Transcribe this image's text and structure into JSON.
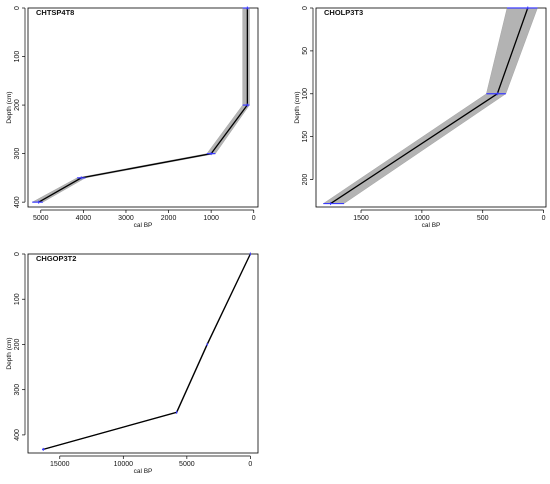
{
  "chart_data": [
    {
      "type": "line",
      "title": "CHTSP4T8",
      "xlabel": "cal BP",
      "ylabel": "Depth (cm)",
      "xlim": [
        5300,
        -100
      ],
      "ylim": [
        0,
        410
      ],
      "x_reversed": true,
      "y_reversed": true,
      "x_ticks": [
        5000,
        4000,
        3000,
        2000,
        1000,
        0
      ],
      "y_ticks": [
        0,
        100,
        200,
        300,
        400
      ],
      "colors": {
        "envelope": "#b3b3b3",
        "median": "#000000",
        "date_marker": "#3b3bff"
      },
      "series": [
        {
          "age": [
            150,
            150,
            1000,
            4050,
            5050
          ],
          "depth": [
            0,
            200,
            300,
            350,
            400
          ],
          "age_min": [
            100,
            100,
            900,
            3950,
            4950
          ],
          "age_max": [
            260,
            260,
            1100,
            4150,
            5200
          ]
        }
      ],
      "dated_depths": [
        0,
        200,
        300,
        350,
        400
      ]
    },
    {
      "type": "line",
      "title": "CHOLP3T3",
      "xlabel": "cal BP",
      "ylabel": "Depth (cm)",
      "xlim": [
        1870,
        -20
      ],
      "ylim": [
        0,
        232
      ],
      "x_reversed": true,
      "y_reversed": true,
      "x_ticks": [
        1500,
        1000,
        500,
        0
      ],
      "y_ticks": [
        0,
        50,
        100,
        150,
        200
      ],
      "colors": {
        "envelope": "#b3b3b3",
        "median": "#000000",
        "date_marker": "#3b3bff"
      },
      "series": [
        {
          "age": [
            130,
            380,
            1750
          ],
          "depth": [
            0,
            100,
            228
          ],
          "age_min": [
            50,
            310,
            1640
          ],
          "age_max": [
            300,
            470,
            1810
          ]
        }
      ],
      "dated_depths": [
        0,
        100,
        228
      ]
    },
    {
      "type": "line",
      "title": "CHGOP3T2",
      "xlabel": "cal BP",
      "ylabel": "Depth (cm)",
      "xlim": [
        17500,
        -600
      ],
      "ylim": [
        0,
        440
      ],
      "x_reversed": true,
      "y_reversed": true,
      "x_ticks": [
        15000,
        10000,
        5000,
        0
      ],
      "y_ticks": [
        0,
        100,
        200,
        300,
        400
      ],
      "colors": {
        "envelope": "#b3b3b3",
        "median": "#000000",
        "date_marker": "#3b3bff"
      },
      "series": [
        {
          "age": [
            0,
            3400,
            5800,
            16300
          ],
          "depth": [
            0,
            200,
            350,
            432
          ],
          "age_min": [
            0,
            3350,
            5750,
            16200
          ],
          "age_max": [
            50,
            3450,
            5850,
            16400
          ]
        }
      ],
      "dated_depths": [
        0,
        200,
        350,
        432
      ]
    }
  ]
}
